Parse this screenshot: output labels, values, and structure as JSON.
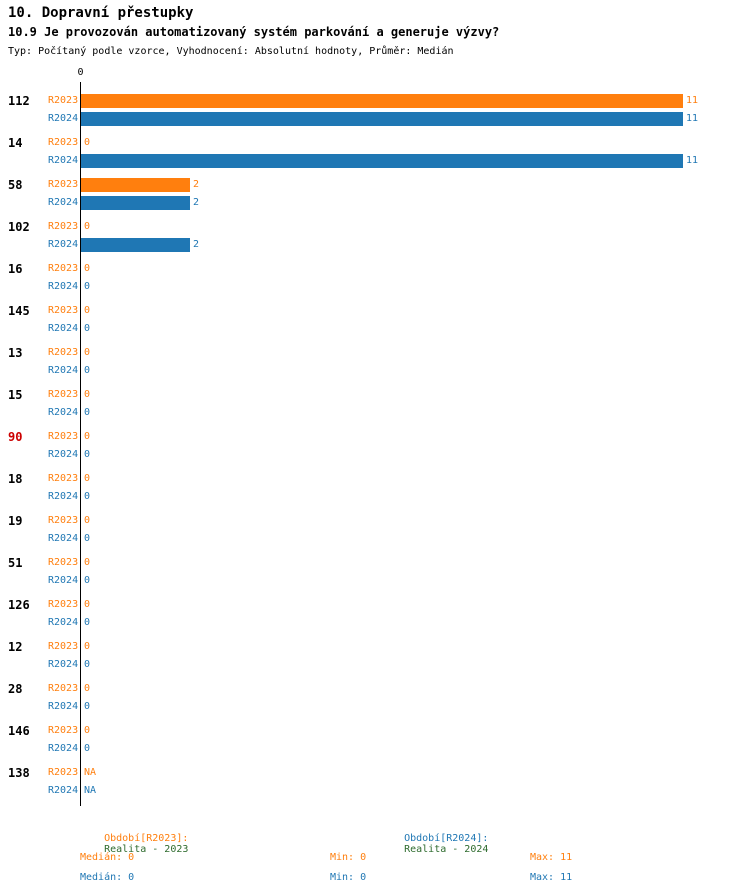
{
  "header": {
    "title": "10. Dopravní přestupky",
    "subtitle": "10.9 Je provozován automatizovaný systém parkování a generuje výzvy?",
    "meta": "Typ: Počítaný podle vzorce, Vyhodnocení: Absolutní hodnoty, Průměr: Medián"
  },
  "colors": {
    "r2023": "#ff7f0e",
    "r2024": "#1f77b4",
    "highlight": "#cc0000",
    "legend_value": "#2e6b2e",
    "axis": "#000000"
  },
  "chart_data": {
    "type": "bar",
    "orientation": "horizontal",
    "title": "10.9 Je provozován automatizovaný systém parkování a generuje výzvy?",
    "categories": [
      "112",
      "14",
      "58",
      "102",
      "16",
      "145",
      "13",
      "15",
      "90",
      "18",
      "19",
      "51",
      "126",
      "12",
      "28",
      "146",
      "138"
    ],
    "series": [
      {
        "key": "r2023",
        "label": "R2023",
        "values": [
          11,
          0,
          2,
          0,
          0,
          0,
          0,
          0,
          0,
          0,
          0,
          0,
          0,
          0,
          0,
          0,
          "NA"
        ]
      },
      {
        "key": "r2024",
        "label": "R2024",
        "values": [
          11,
          11,
          2,
          2,
          0,
          0,
          0,
          0,
          0,
          0,
          0,
          0,
          0,
          0,
          0,
          0,
          "NA"
        ]
      }
    ],
    "highlighted_category": "90",
    "max_value": 11,
    "xlim": [
      0,
      11
    ],
    "axis_tick_label": "0",
    "grid": false,
    "legend_position": "bottom"
  },
  "legend": {
    "r2023_label": "Období[R2023]:",
    "r2023_value": "Realita - 2023",
    "r2024_label": "Období[R2024]:",
    "r2024_value": "Realita - 2024"
  },
  "stats": {
    "r2023": {
      "median": "Medián: 0",
      "min": "Min: 0",
      "max": "Max: 11"
    },
    "r2024": {
      "median": "Medián: 0",
      "min": "Min: 0",
      "max": "Max: 11"
    }
  }
}
